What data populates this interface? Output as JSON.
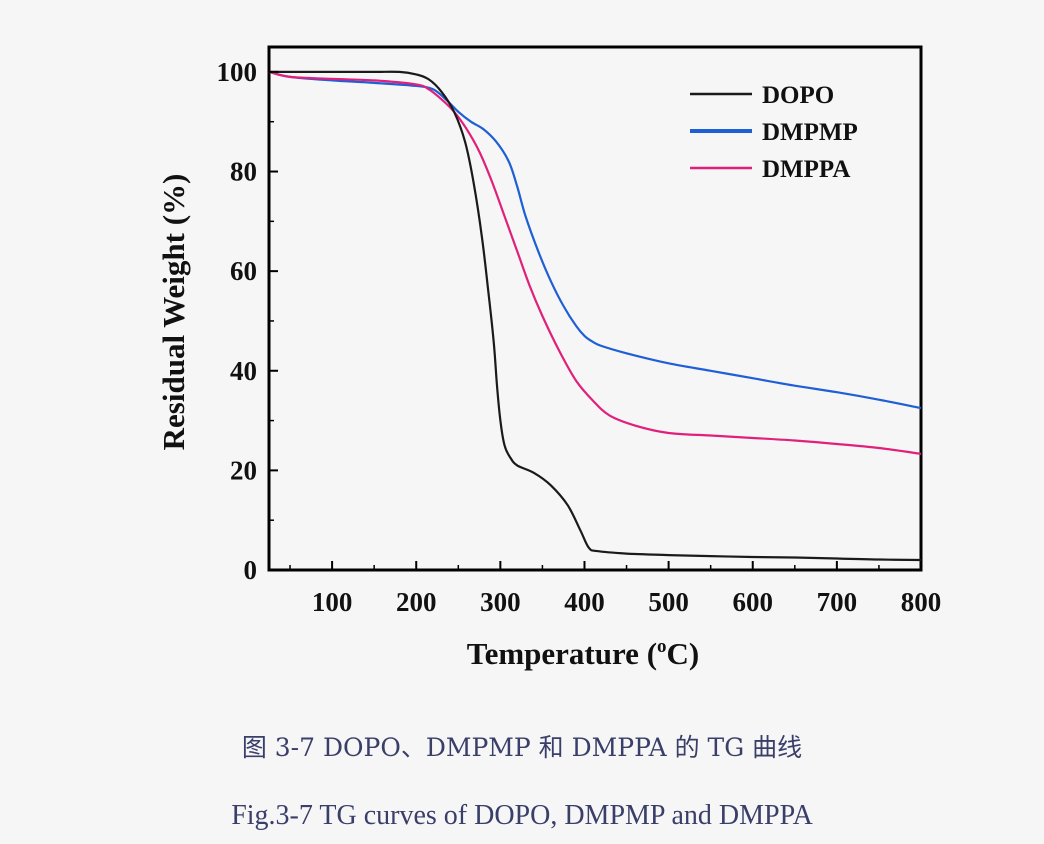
{
  "chart_data": {
    "type": "line",
    "xlabel": "Temperature (",
    "xlabel_sup": "o",
    "xlabel_unit": "C)",
    "ylabel": "Residual Weight (%)",
    "xlim": [
      25,
      800
    ],
    "ylim": [
      0,
      105
    ],
    "xticks": [
      100,
      200,
      300,
      400,
      500,
      600,
      700,
      800
    ],
    "yticks": [
      0,
      20,
      40,
      60,
      80,
      100
    ],
    "grid": false,
    "legend_position": "top-right",
    "series": [
      {
        "name": "DOPO",
        "color": "#1a1a1a",
        "x": [
          25,
          60,
          100,
          150,
          180,
          200,
          215,
          230,
          245,
          258,
          268,
          278,
          285,
          292,
          296,
          300,
          305,
          312,
          320,
          340,
          360,
          380,
          395,
          405,
          415,
          450,
          500,
          550,
          600,
          650,
          700,
          750,
          800
        ],
        "y": [
          100,
          100,
          100,
          100,
          100,
          99.5,
          98.5,
          96,
          92,
          86,
          78,
          67,
          57,
          46,
          37,
          30,
          25,
          22.5,
          21,
          19.5,
          17,
          13,
          8,
          4.5,
          3.8,
          3.3,
          3,
          2.8,
          2.6,
          2.5,
          2.3,
          2.1,
          2
        ]
      },
      {
        "name": "DMPMP",
        "color": "#1f5fd6",
        "x": [
          25,
          50,
          100,
          150,
          200,
          220,
          235,
          250,
          265,
          280,
          295,
          310,
          320,
          330,
          345,
          360,
          375,
          390,
          400,
          410,
          420,
          450,
          500,
          550,
          600,
          650,
          700,
          750,
          800
        ],
        "y": [
          100,
          99,
          98.3,
          97.8,
          97.2,
          96.5,
          94.5,
          92,
          90,
          88.5,
          86,
          82,
          77,
          71,
          64,
          58,
          53,
          49,
          47,
          45.8,
          45,
          43.5,
          41.5,
          40,
          38.5,
          37,
          35.7,
          34.2,
          32.5
        ]
      },
      {
        "name": "DMPPA",
        "color": "#e0207a",
        "x": [
          25,
          50,
          100,
          150,
          200,
          215,
          230,
          245,
          260,
          275,
          290,
          305,
          320,
          335,
          350,
          370,
          390,
          410,
          430,
          460,
          500,
          550,
          600,
          650,
          700,
          750,
          800
        ],
        "y": [
          100,
          99,
          98.6,
          98.3,
          97.5,
          96.5,
          94.5,
          92,
          88.5,
          84,
          78,
          71,
          64,
          57,
          51,
          44,
          38,
          34,
          31,
          29,
          27.5,
          27,
          26.5,
          26,
          25.3,
          24.5,
          23.3
        ]
      }
    ]
  },
  "caption": {
    "cn": "图 3-7 DOPO、DMPMP 和 DMPPA 的 TG 曲线",
    "en": "Fig.3-7 TG curves of DOPO, DMPMP and DMPPA"
  }
}
